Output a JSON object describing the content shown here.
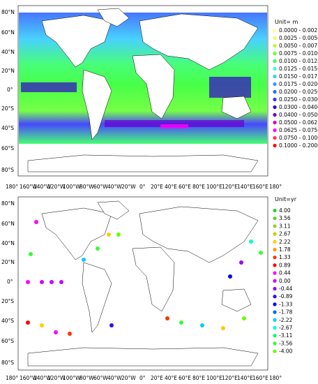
{
  "top_map": {
    "unit": "Unit= m",
    "lat_labels": [
      "80°N",
      "60°N",
      "40°N",
      "20°N",
      "0°",
      "20°S",
      "40°S",
      "60°S",
      "80°S"
    ],
    "lon_labels": [
      "180°",
      "160°W",
      "140°W",
      "120°W",
      "100°W",
      "80°W",
      "60°W",
      "40°W",
      "20°W",
      "0°",
      "20°E",
      "40°E",
      "60°E",
      "80°E",
      "100°E",
      "120°E",
      "140°E",
      "160°E",
      "180°"
    ],
    "legend": [
      {
        "label": "0.0000 - 0.0025",
        "color": "#ffff99"
      },
      {
        "label": "0.0025 - 0.0050",
        "color": "#e6ff66"
      },
      {
        "label": "0.0050 - 0.0075",
        "color": "#b3ff33"
      },
      {
        "label": "0.0075 - 0.0100",
        "color": "#66ff33"
      },
      {
        "label": "0.0100 - 0.0125",
        "color": "#33ff66"
      },
      {
        "label": "0.0125 - 0.0150",
        "color": "#33ffcc"
      },
      {
        "label": "0.0150 - 0.0175",
        "color": "#33ccff"
      },
      {
        "label": "0.0175 - 0.0200",
        "color": "#3399ff"
      },
      {
        "label": "0.0200 - 0.0250",
        "color": "#3366ff"
      },
      {
        "label": "0.0250 - 0.0300",
        "color": "#3333ff"
      },
      {
        "label": "0.0300 - 0.0400",
        "color": "#3300cc"
      },
      {
        "label": "0.0400 - 0.0500",
        "color": "#6600cc"
      },
      {
        "label": "0.0500 - 0.0625",
        "color": "#cc00cc"
      },
      {
        "label": "0.0625 - 0.0750",
        "color": "#ff00ff"
      },
      {
        "label": "0.0750 - 0.1000",
        "color": "#ff3366"
      },
      {
        "label": "0.1000 - 0.2000",
        "color": "#ff0000"
      }
    ]
  },
  "bottom_map": {
    "unit": "Unit=yr",
    "lat_labels": [
      "80°N",
      "60°N",
      "40°N",
      "20°N",
      "0°",
      "20°S",
      "40°S",
      "60°S",
      "80°S"
    ],
    "lon_labels": [
      "180°",
      "160°W",
      "140°W",
      "120°W",
      "100°W",
      "80°W",
      "60°W",
      "40°W",
      "20°W",
      "0°",
      "20°E",
      "40°E",
      "60°E",
      "80°E",
      "100°E",
      "120°E",
      "140°E",
      "160°E",
      "180°"
    ],
    "legend": [
      {
        "label": "4.00",
        "color": "#33cc33"
      },
      {
        "label": "3.56",
        "color": "#66cc33"
      },
      {
        "label": "3.11",
        "color": "#99cc33"
      },
      {
        "label": "2.67",
        "color": "#cccc00"
      },
      {
        "label": "2.22",
        "color": "#ffcc00"
      },
      {
        "label": "1.78",
        "color": "#ff9900"
      },
      {
        "label": "1.33",
        "color": "#ff3300"
      },
      {
        "label": "0.89",
        "color": "#ff0000"
      },
      {
        "label": "0.44",
        "color": "#ff00ff"
      },
      {
        "label": "0.00",
        "color": "#cc00ff"
      },
      {
        "label": "-0.44",
        "color": "#9900ff"
      },
      {
        "label": "-0.89",
        "color": "#3300ff"
      },
      {
        "label": "-1.33",
        "color": "#0000ff"
      },
      {
        "label": "-1.78",
        "color": "#0066ff"
      },
      {
        "label": "-2.22",
        "color": "#00ccff"
      },
      {
        "label": "-2.67",
        "color": "#00ffcc"
      },
      {
        "label": "-3.11",
        "color": "#00ff66"
      },
      {
        "label": "-3.56",
        "color": "#33ff33"
      },
      {
        "label": "-4.00",
        "color": "#66ff00"
      }
    ]
  }
}
